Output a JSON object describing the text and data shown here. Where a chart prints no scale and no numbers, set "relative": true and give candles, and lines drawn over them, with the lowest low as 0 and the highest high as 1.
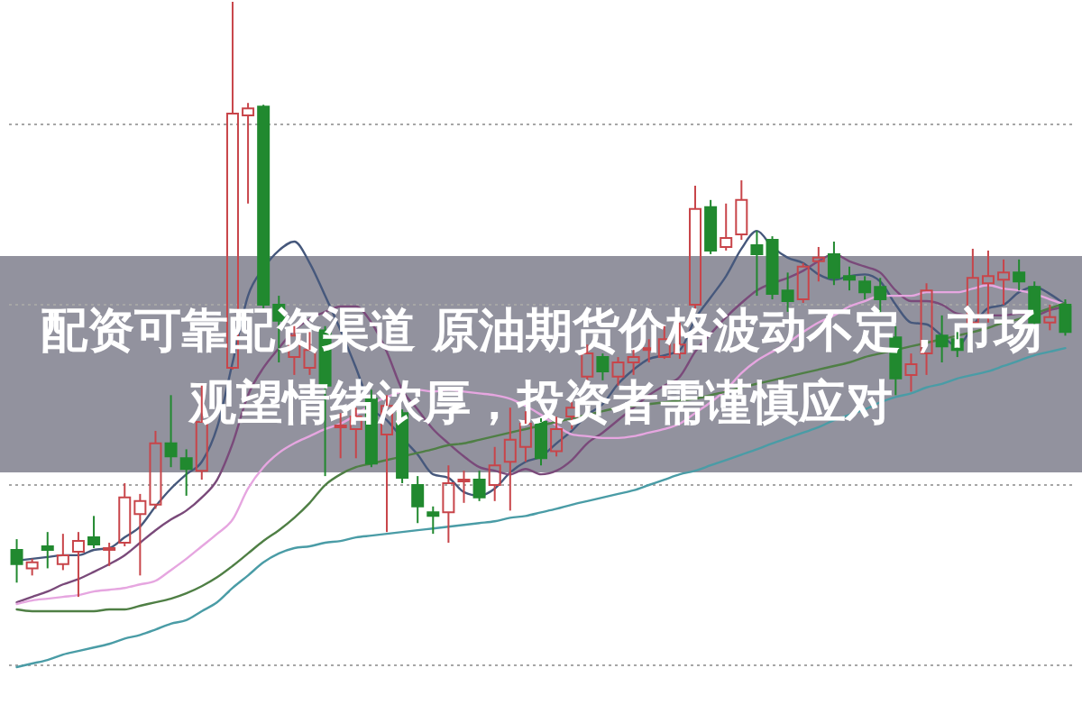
{
  "chart_data": {
    "type": "candlestick",
    "title": "配资可靠配资渠道 原油期货价格波动不定，市场观望情绪浓厚，投资者需谨慎应对",
    "relative": true,
    "categories": [
      null,
      null,
      null,
      null,
      null,
      null,
      null,
      null,
      null,
      null,
      null,
      null,
      null,
      null,
      null,
      null,
      null,
      null,
      null,
      null,
      null,
      null,
      null,
      null,
      null,
      null,
      null,
      null,
      null,
      null,
      null,
      null,
      null,
      null,
      null,
      null,
      null,
      null,
      null,
      null,
      null,
      null,
      null,
      null,
      null,
      null,
      null,
      null,
      null,
      null,
      null,
      null,
      null,
      null,
      null,
      null,
      null,
      null,
      null,
      null,
      null,
      null,
      null,
      null,
      null,
      null,
      null,
      null,
      null
    ],
    "ohlc": [
      [
        0.079,
        0.097,
        0.024,
        0.055
      ],
      [
        0.048,
        0.064,
        0.036,
        0.058
      ],
      [
        0.085,
        0.109,
        0.048,
        0.079
      ],
      [
        0.055,
        0.106,
        0.045,
        0.07
      ],
      [
        0.076,
        0.109,
        0.0,
        0.094
      ],
      [
        0.1,
        0.136,
        0.082,
        0.088
      ],
      [
        0.079,
        0.091,
        0.052,
        0.082
      ],
      [
        0.091,
        0.191,
        0.085,
        0.167
      ],
      [
        0.139,
        0.173,
        0.036,
        0.161
      ],
      [
        0.155,
        0.279,
        0.148,
        0.258
      ],
      [
        0.258,
        0.339,
        0.218,
        0.236
      ],
      [
        0.233,
        0.248,
        0.17,
        0.215
      ],
      [
        0.212,
        0.355,
        0.197,
        0.294
      ],
      null,
      [
        0.385,
        1.0,
        0.382,
        0.812
      ],
      [
        0.809,
        0.83,
        0.661,
        0.821
      ],
      [
        0.824,
        0.827,
        0.485,
        0.491
      ],
      [
        0.491,
        0.506,
        0.394,
        0.464
      ],
      [
        0.403,
        0.455,
        0.373,
        0.439
      ],
      [
        0.385,
        0.445,
        0.373,
        0.415
      ],
      [
        0.448,
        0.455,
        0.203,
        0.355
      ],
      [
        0.285,
        0.309,
        0.233,
        0.288
      ],
      [
        0.282,
        0.318,
        0.233,
        0.303
      ],
      [
        0.333,
        0.348,
        0.218,
        0.224
      ],
      [
        0.273,
        0.339,
        0.109,
        0.321
      ],
      [
        0.309,
        0.315,
        0.191,
        0.2
      ],
      [
        0.188,
        0.203,
        0.124,
        0.152
      ],
      [
        0.142,
        0.152,
        0.106,
        0.136
      ],
      [
        0.142,
        0.221,
        0.091,
        0.191
      ],
      [
        0.194,
        0.212,
        0.158,
        0.197
      ],
      [
        0.197,
        0.212,
        0.161,
        0.167
      ],
      [
        0.188,
        0.252,
        0.161,
        0.221
      ],
      [
        0.227,
        0.318,
        0.145,
        0.264
      ],
      [
        0.252,
        0.312,
        0.227,
        0.291
      ],
      [
        0.294,
        0.3,
        0.221,
        0.233
      ],
      [
        0.245,
        0.303,
        0.236,
        0.282
      ],
      [
        0.303,
        0.327,
        0.282,
        0.318
      ],
      [
        0.37,
        0.424,
        0.364,
        0.409
      ],
      [
        0.403,
        0.409,
        0.364,
        0.379
      ],
      [
        0.37,
        0.403,
        0.355,
        0.394
      ],
      [
        0.394,
        0.415,
        0.373,
        0.403
      ],
      [
        0.415,
        0.433,
        0.394,
        0.418
      ],
      [
        0.403,
        0.455,
        0.4,
        0.433
      ],
      [
        0.409,
        0.461,
        0.4,
        0.424
      ],
      [
        0.491,
        0.691,
        0.479,
        0.652
      ],
      [
        0.655,
        0.667,
        0.576,
        0.582
      ],
      [
        0.588,
        0.661,
        0.582,
        0.603
      ],
      [
        0.609,
        0.7,
        0.6,
        0.667
      ],
      [
        0.591,
        0.615,
        0.506,
        0.576
      ],
      [
        0.6,
        0.606,
        0.5,
        0.509
      ],
      [
        0.515,
        0.545,
        0.479,
        0.497
      ],
      [
        0.5,
        0.561,
        0.494,
        0.555
      ],
      [
        0.564,
        0.588,
        0.53,
        0.57
      ],
      [
        0.576,
        0.597,
        0.524,
        0.536
      ],
      [
        0.539,
        0.555,
        0.515,
        0.533
      ],
      [
        0.53,
        0.539,
        0.5,
        0.512
      ],
      [
        0.521,
        0.536,
        0.473,
        0.5
      ],
      [
        0.436,
        0.455,
        0.339,
        0.367
      ],
      [
        0.373,
        0.409,
        0.345,
        0.391
      ],
      [
        0.409,
        0.527,
        0.373,
        0.515
      ],
      [
        0.439,
        0.473,
        0.394,
        0.421
      ],
      [
        0.433,
        0.445,
        0.403,
        0.415
      ],
      [
        0.461,
        0.585,
        0.455,
        0.536
      ],
      [
        0.527,
        0.582,
        0.461,
        0.539
      ],
      [
        0.533,
        0.567,
        0.491,
        0.545
      ],
      [
        0.545,
        0.567,
        0.515,
        0.53
      ],
      [
        0.521,
        0.53,
        0.455,
        0.461
      ],
      [
        0.461,
        0.491,
        0.448,
        0.47
      ],
      [
        0.491,
        0.5,
        0.439,
        0.445
      ]
    ],
    "colors": [
      "#21892f",
      "#c8454a",
      "#21892f",
      "#c8454a",
      "#c8454a",
      "#21892f",
      "#c8454a",
      "#c8454a",
      "#c8454a",
      "#c8454a",
      "#21892f",
      "#21892f",
      "#c8454a",
      null,
      "#c8454a",
      "#c8454a",
      "#21892f",
      "#21892f",
      "#c8454a",
      "#c8454a",
      "#21892f",
      "#c8454a",
      "#c8454a",
      "#21892f",
      "#c8454a",
      "#21892f",
      "#21892f",
      "#21892f",
      "#c8454a",
      "#c8454a",
      "#21892f",
      "#c8454a",
      "#c8454a",
      "#c8454a",
      "#21892f",
      "#c8454a",
      "#c8454a",
      "#c8454a",
      "#21892f",
      "#c8454a",
      "#c8454a",
      "#c8454a",
      "#c8454a",
      "#c8454a",
      "#c8454a",
      "#21892f",
      "#c8454a",
      "#c8454a",
      "#21892f",
      "#21892f",
      "#21892f",
      "#c8454a",
      "#c8454a",
      "#21892f",
      "#21892f",
      "#21892f",
      "#21892f",
      "#21892f",
      "#c8454a",
      "#c8454a",
      "#21892f",
      "#21892f",
      "#c8454a",
      "#c8454a",
      "#c8454a",
      "#21892f",
      "#21892f",
      "#c8454a",
      "#21892f"
    ],
    "series": [
      {
        "type": "line",
        "color": "#46587c",
        "values": [
          0.061,
          0.064,
          0.067,
          0.07,
          0.07,
          0.079,
          0.082,
          0.1,
          0.118,
          0.152,
          0.182,
          0.206,
          0.227,
          0.285,
          0.394,
          0.506,
          0.552,
          0.582,
          0.597,
          0.561,
          0.506,
          0.448,
          0.385,
          0.318,
          0.297,
          0.267,
          0.239,
          0.206,
          0.2,
          0.176,
          0.17,
          0.182,
          0.209,
          0.227,
          0.236,
          0.258,
          0.279,
          0.306,
          0.324,
          0.358,
          0.382,
          0.4,
          0.406,
          0.415,
          0.467,
          0.503,
          0.539,
          0.585,
          0.615,
          0.588,
          0.57,
          0.561,
          0.542,
          0.533,
          0.539,
          0.542,
          0.53,
          0.491,
          0.461,
          0.458,
          0.439,
          0.421,
          0.455,
          0.485,
          0.491,
          0.512,
          0.521,
          0.509,
          0.491
        ]
      },
      {
        "type": "line",
        "color": "#7a4a7a",
        "values": [
          -0.009,
          0.0,
          0.009,
          0.021,
          0.03,
          0.042,
          0.055,
          0.07,
          0.091,
          0.112,
          0.13,
          0.145,
          0.167,
          0.197,
          0.258,
          0.339,
          0.385,
          0.418,
          0.448,
          0.467,
          0.479,
          0.488,
          0.488,
          0.461,
          0.412,
          0.348,
          0.315,
          0.282,
          0.258,
          0.236,
          0.218,
          0.212,
          0.206,
          0.215,
          0.206,
          0.212,
          0.23,
          0.258,
          0.276,
          0.297,
          0.318,
          0.339,
          0.355,
          0.37,
          0.412,
          0.442,
          0.47,
          0.494,
          0.515,
          0.527,
          0.536,
          0.548,
          0.564,
          0.576,
          0.564,
          0.555,
          0.545,
          0.515,
          0.497,
          0.497,
          0.491,
          0.476,
          0.473,
          0.473,
          0.473,
          0.476,
          0.473,
          0.482,
          0.488
        ]
      },
      {
        "type": "line",
        "color": "#e6a6e0",
        "values": [
          -0.012,
          -0.006,
          -0.003,
          0.0,
          0.003,
          0.009,
          0.012,
          0.015,
          0.021,
          0.027,
          0.045,
          0.064,
          0.085,
          0.106,
          0.13,
          0.182,
          0.218,
          0.242,
          0.258,
          0.27,
          0.282,
          0.291,
          0.306,
          0.324,
          0.336,
          0.345,
          0.348,
          0.345,
          0.348,
          0.345,
          0.342,
          0.339,
          0.333,
          0.321,
          0.306,
          0.288,
          0.273,
          0.27,
          0.267,
          0.267,
          0.27,
          0.276,
          0.282,
          0.291,
          0.309,
          0.327,
          0.348,
          0.376,
          0.397,
          0.412,
          0.427,
          0.445,
          0.461,
          0.473,
          0.488,
          0.497,
          0.506,
          0.506,
          0.506,
          0.512,
          0.512,
          0.512,
          0.518,
          0.524,
          0.518,
          0.515,
          0.509,
          0.5,
          0.491
        ]
      },
      {
        "type": "line",
        "color": "#4f7f45",
        "values": [
          -0.021,
          -0.024,
          -0.024,
          -0.024,
          -0.024,
          -0.024,
          -0.021,
          -0.021,
          -0.015,
          -0.009,
          -0.003,
          0.006,
          0.018,
          0.033,
          0.052,
          0.073,
          0.094,
          0.112,
          0.133,
          0.158,
          0.188,
          0.206,
          0.218,
          0.224,
          0.23,
          0.236,
          0.242,
          0.248,
          0.255,
          0.258,
          0.264,
          0.27,
          0.276,
          0.282,
          0.288,
          0.294,
          0.3,
          0.306,
          0.312,
          0.318,
          0.321,
          0.324,
          0.327,
          0.33,
          0.333,
          0.339,
          0.345,
          0.352,
          0.358,
          0.364,
          0.37,
          0.376,
          0.382,
          0.388,
          0.394,
          0.403,
          0.409,
          0.415,
          0.421,
          0.427,
          0.433,
          0.439,
          0.445,
          0.452,
          0.461,
          0.467,
          0.476,
          0.485,
          0.494
        ]
      },
      {
        "type": "line",
        "color": "#4a9ca6",
        "values": [
          -0.118,
          -0.112,
          -0.106,
          -0.097,
          -0.091,
          -0.085,
          -0.079,
          -0.07,
          -0.064,
          -0.055,
          -0.045,
          -0.039,
          -0.024,
          -0.009,
          0.015,
          0.036,
          0.058,
          0.073,
          0.082,
          0.085,
          0.091,
          0.094,
          0.1,
          0.103,
          0.106,
          0.109,
          0.112,
          0.115,
          0.118,
          0.121,
          0.124,
          0.127,
          0.133,
          0.136,
          0.142,
          0.148,
          0.155,
          0.161,
          0.167,
          0.173,
          0.179,
          0.188,
          0.197,
          0.206,
          0.212,
          0.221,
          0.23,
          0.239,
          0.248,
          0.258,
          0.267,
          0.276,
          0.285,
          0.297,
          0.306,
          0.315,
          0.327,
          0.336,
          0.342,
          0.352,
          0.358,
          0.367,
          0.373,
          0.379,
          0.388,
          0.397,
          0.406,
          0.412,
          0.418
        ]
      }
    ],
    "ref_lines": [
      {
        "axis": "y",
        "value": 0.794,
        "color": "#a6a6a6",
        "line_style": "dotted"
      },
      {
        "axis": "y",
        "value": 0.491,
        "color": "#a6a6a6",
        "line_style": "dotted"
      },
      {
        "axis": "y",
        "value": 0.188,
        "color": "#a6a6a6",
        "line_style": "dotted"
      },
      {
        "axis": "y",
        "value": -0.115,
        "color": "#a6a6a6",
        "line_style": "dotted"
      }
    ]
  }
}
